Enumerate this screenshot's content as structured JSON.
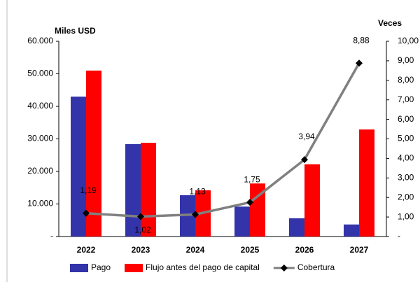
{
  "chart_data": {
    "type": "bar",
    "y_label": "Miles USD",
    "y2_label": "Veces",
    "categories": [
      "2022",
      "2023",
      "2024",
      "2025",
      "2026",
      "2027"
    ],
    "series": [
      {
        "name": "Pago",
        "type": "bar",
        "color": "#3333aa",
        "values": [
          43000,
          28400,
          12700,
          9200,
          5600,
          3700
        ]
      },
      {
        "name": "Flujo antes del pago de capital",
        "type": "bar",
        "color": "#ff0000",
        "values": [
          51000,
          28800,
          14200,
          16300,
          22200,
          32900
        ]
      },
      {
        "name": "Cobertura",
        "type": "line",
        "axis": "y2",
        "color": "#808080",
        "values": [
          1.19,
          1.02,
          1.13,
          1.75,
          3.94,
          8.88
        ],
        "value_labels": [
          "1,19",
          "1,02",
          "1,13",
          "1,75",
          "3,94",
          "8,88"
        ]
      }
    ],
    "ylim": [
      0,
      60000
    ],
    "yticks": [
      {
        "value": 0,
        "label": "-"
      },
      {
        "value": 10000,
        "label": "10.000"
      },
      {
        "value": 20000,
        "label": "20.000"
      },
      {
        "value": 30000,
        "label": "30.000"
      },
      {
        "value": 40000,
        "label": "40.000"
      },
      {
        "value": 50000,
        "label": "50.000"
      },
      {
        "value": 60000,
        "label": "60.000"
      }
    ],
    "y2lim": [
      0,
      10
    ],
    "y2ticks": [
      {
        "value": 0,
        "label": "-"
      },
      {
        "value": 1,
        "label": "1,00"
      },
      {
        "value": 2,
        "label": "2,00"
      },
      {
        "value": 3,
        "label": "3,00"
      },
      {
        "value": 4,
        "label": "4,00"
      },
      {
        "value": 5,
        "label": "5,00"
      },
      {
        "value": 6,
        "label": "6,00"
      },
      {
        "value": 7,
        "label": "7,00"
      },
      {
        "value": 8,
        "label": "8,00"
      },
      {
        "value": 9,
        "label": "9,00"
      },
      {
        "value": 10,
        "label": "10,00"
      }
    ],
    "legend": "bottom"
  }
}
